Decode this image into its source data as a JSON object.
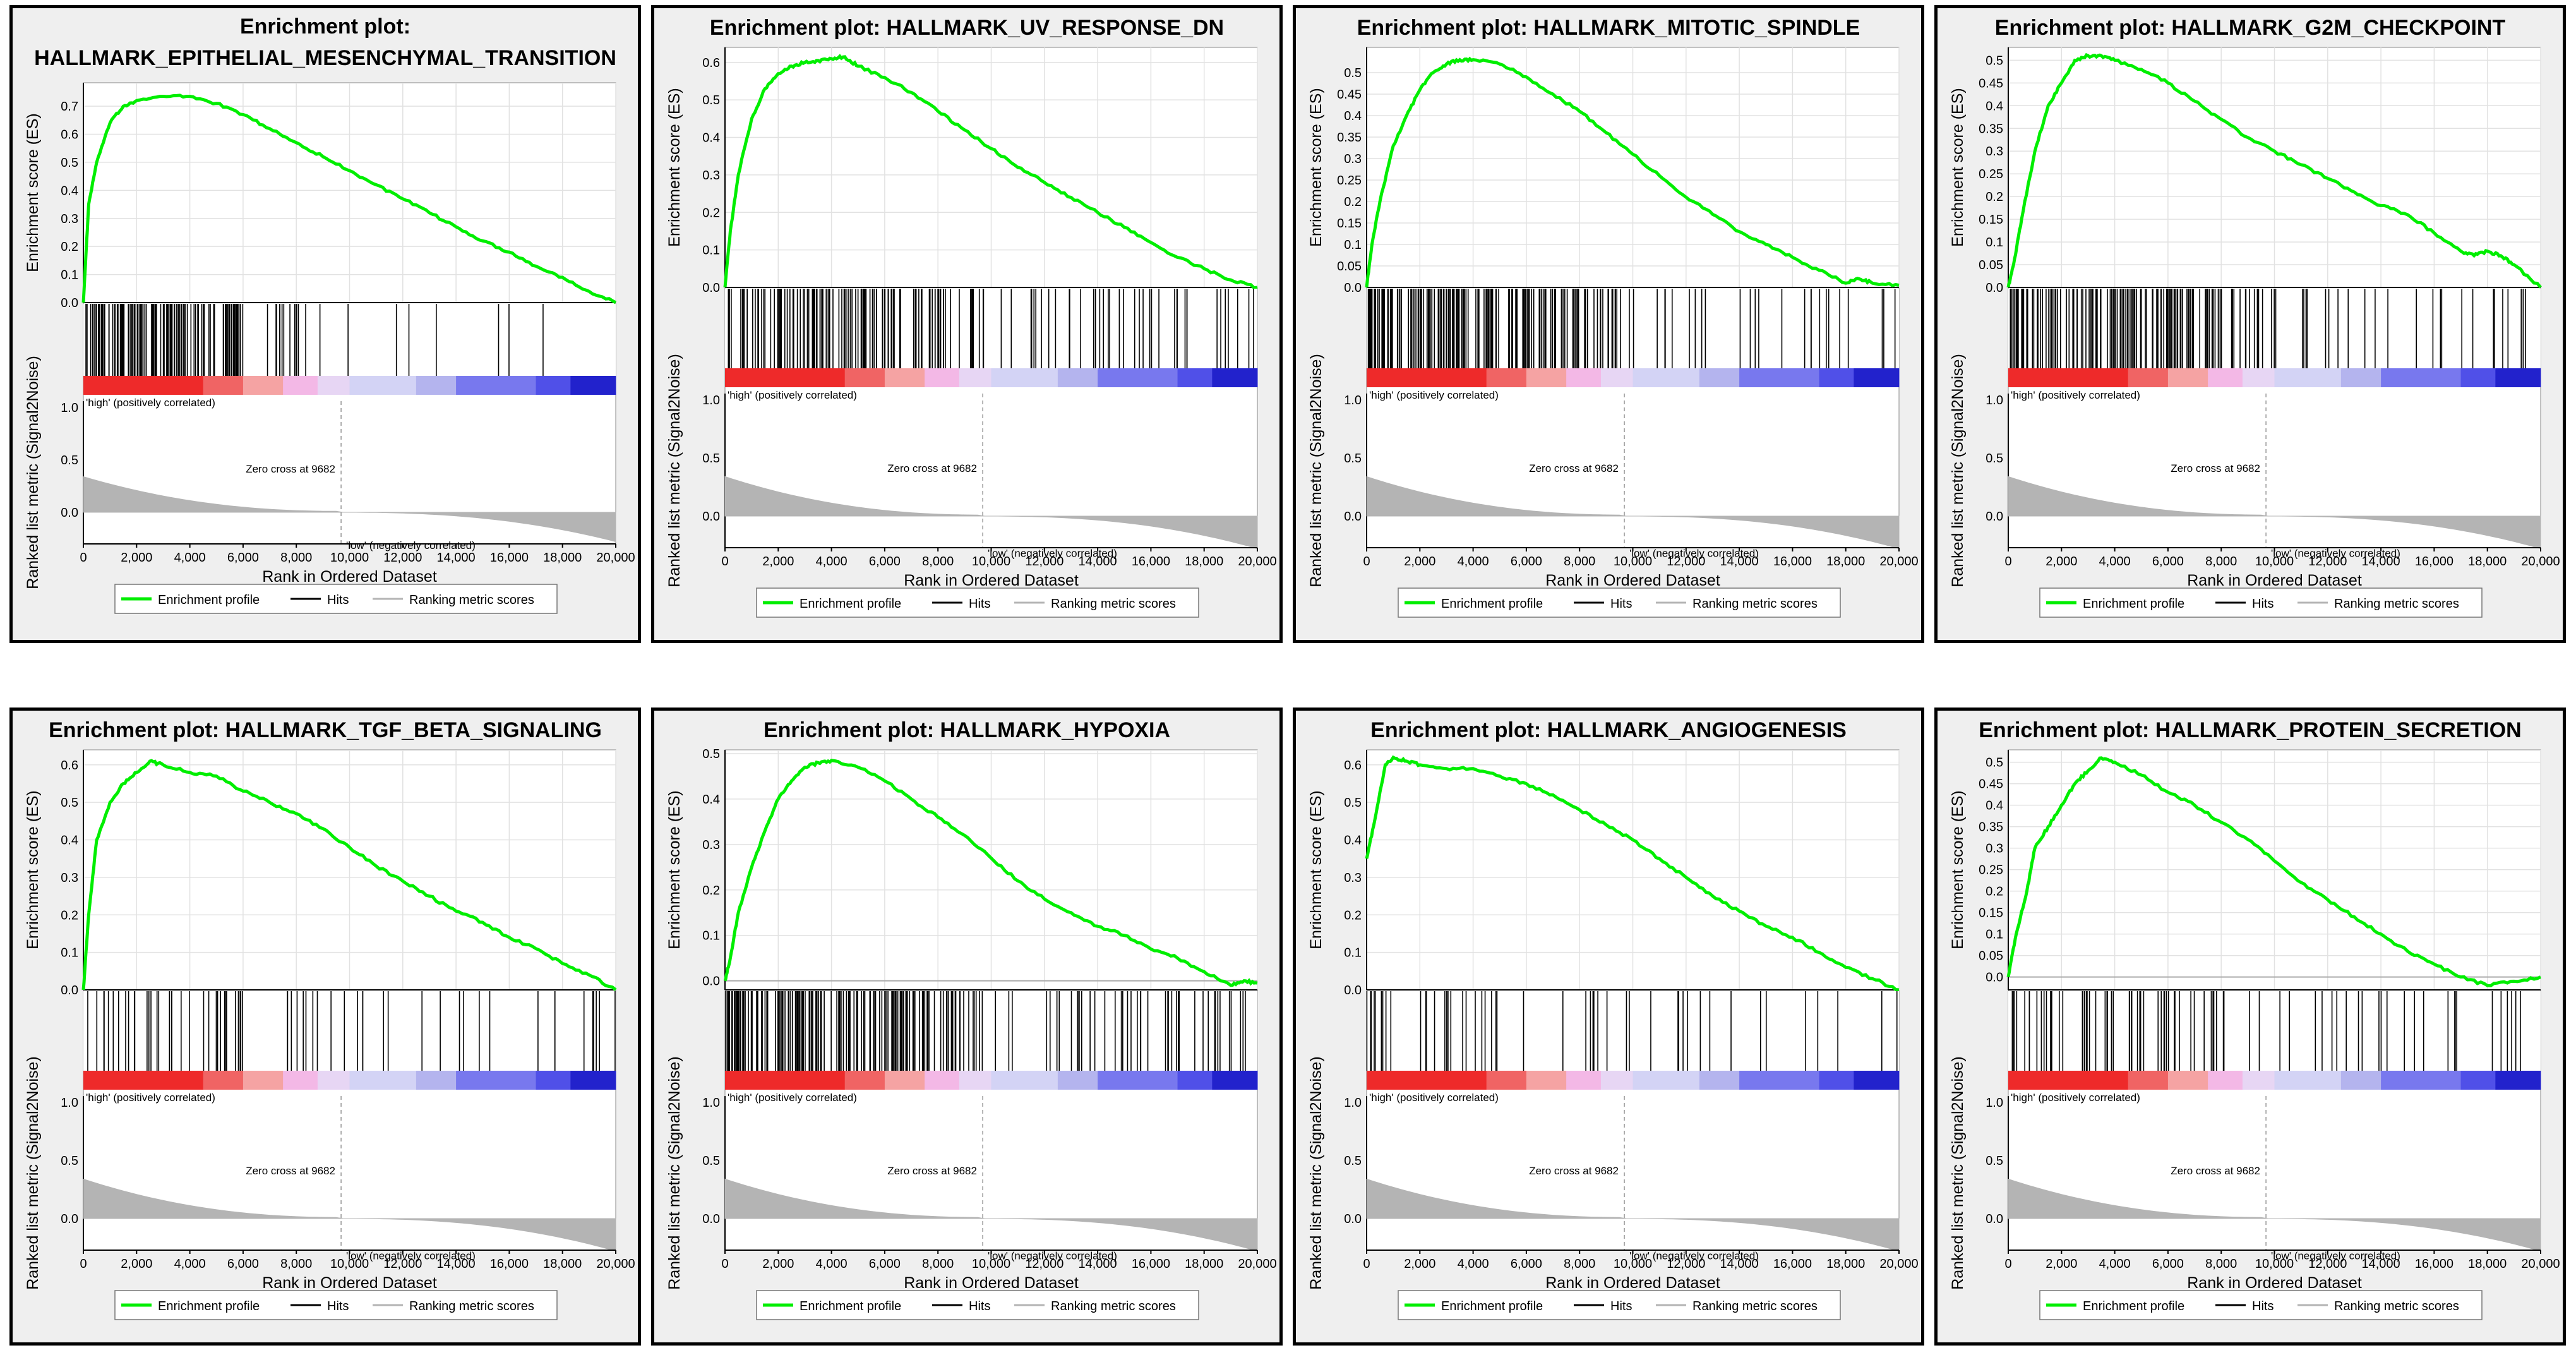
{
  "chart_data": [
    {
      "type": "line",
      "title_prefix": "Enrichment plot:",
      "gene_set": "HALLMARK_EPITHELIAL_MESENCHYMAL_TRANSITION",
      "title_two_lines": true,
      "ylabel": "Enrichment score (ES)",
      "ylim": [
        0,
        0.77
      ],
      "yticks": [
        0.0,
        0.1,
        0.2,
        0.3,
        0.4,
        0.5,
        0.6,
        0.7
      ],
      "es_curve": [
        [
          0,
          0
        ],
        [
          200,
          0.35
        ],
        [
          500,
          0.5
        ],
        [
          1000,
          0.64
        ],
        [
          1500,
          0.7
        ],
        [
          2000,
          0.72
        ],
        [
          3000,
          0.735
        ],
        [
          4000,
          0.735
        ],
        [
          5000,
          0.71
        ],
        [
          6000,
          0.67
        ],
        [
          7000,
          0.62
        ],
        [
          8000,
          0.57
        ],
        [
          9000,
          0.52
        ],
        [
          10000,
          0.47
        ],
        [
          11000,
          0.42
        ],
        [
          12000,
          0.37
        ],
        [
          13000,
          0.32
        ],
        [
          14000,
          0.27
        ],
        [
          15000,
          0.22
        ],
        [
          16000,
          0.18
        ],
        [
          17000,
          0.13
        ],
        [
          18000,
          0.09
        ],
        [
          19000,
          0.04
        ],
        [
          20000,
          0.0
        ]
      ],
      "hit_segments": [
        [
          0,
          6000,
          120
        ],
        [
          6000,
          8000,
          10
        ],
        [
          8000,
          10000,
          5
        ],
        [
          10000,
          20000,
          6
        ]
      ]
    },
    {
      "type": "line",
      "title_prefix": "Enrichment plot:",
      "gene_set": "HALLMARK_UV_RESPONSE_DN",
      "title_two_lines": false,
      "ylabel": "Enrichment score (ES)",
      "ylim": [
        0,
        0.63
      ],
      "yticks": [
        0.0,
        0.1,
        0.2,
        0.3,
        0.4,
        0.5,
        0.6
      ],
      "es_curve": [
        [
          0,
          0
        ],
        [
          200,
          0.15
        ],
        [
          500,
          0.3
        ],
        [
          1000,
          0.45
        ],
        [
          1500,
          0.53
        ],
        [
          2000,
          0.57
        ],
        [
          2500,
          0.59
        ],
        [
          3000,
          0.6
        ],
        [
          3500,
          0.605
        ],
        [
          4000,
          0.61
        ],
        [
          4500,
          0.615
        ],
        [
          5000,
          0.59
        ],
        [
          6000,
          0.56
        ],
        [
          7000,
          0.52
        ],
        [
          8000,
          0.47
        ],
        [
          9000,
          0.42
        ],
        [
          10000,
          0.37
        ],
        [
          11000,
          0.32
        ],
        [
          12000,
          0.28
        ],
        [
          13000,
          0.24
        ],
        [
          14000,
          0.2
        ],
        [
          15000,
          0.16
        ],
        [
          16000,
          0.12
        ],
        [
          17000,
          0.08
        ],
        [
          18000,
          0.05
        ],
        [
          19000,
          0.02
        ],
        [
          20000,
          0.0
        ]
      ],
      "hit_segments": [
        [
          0,
          7000,
          90
        ],
        [
          7000,
          10000,
          30
        ],
        [
          10000,
          20000,
          40
        ]
      ]
    },
    {
      "type": "line",
      "title_prefix": "Enrichment plot:",
      "gene_set": "HALLMARK_MITOTIC_SPINDLE",
      "title_two_lines": false,
      "ylabel": "Enrichment score (ES)",
      "ylim": [
        0,
        0.55
      ],
      "yticks": [
        0.0,
        0.05,
        0.1,
        0.15,
        0.2,
        0.25,
        0.3,
        0.35,
        0.4,
        0.45,
        0.5
      ],
      "es_curve": [
        [
          0,
          0
        ],
        [
          200,
          0.1
        ],
        [
          500,
          0.2
        ],
        [
          1000,
          0.33
        ],
        [
          1500,
          0.4
        ],
        [
          2000,
          0.46
        ],
        [
          2500,
          0.5
        ],
        [
          3000,
          0.52
        ],
        [
          3500,
          0.53
        ],
        [
          4000,
          0.53
        ],
        [
          5000,
          0.52
        ],
        [
          6000,
          0.49
        ],
        [
          7000,
          0.45
        ],
        [
          8000,
          0.41
        ],
        [
          9000,
          0.36
        ],
        [
          10000,
          0.31
        ],
        [
          11000,
          0.26
        ],
        [
          12000,
          0.21
        ],
        [
          13000,
          0.17
        ],
        [
          14000,
          0.13
        ],
        [
          15000,
          0.1
        ],
        [
          16000,
          0.07
        ],
        [
          17000,
          0.04
        ],
        [
          18000,
          0.01
        ],
        [
          18500,
          0.02
        ],
        [
          19000,
          0.01
        ],
        [
          20000,
          0.005
        ]
      ],
      "hit_segments": [
        [
          0,
          8000,
          140
        ],
        [
          8000,
          10000,
          20
        ],
        [
          10000,
          20000,
          25
        ]
      ]
    },
    {
      "type": "line",
      "title_prefix": "Enrichment plot:",
      "gene_set": "HALLMARK_G2M_CHECKPOINT",
      "title_two_lines": false,
      "ylabel": "Enrichment score (ES)",
      "ylim": [
        0,
        0.52
      ],
      "yticks": [
        0.0,
        0.05,
        0.1,
        0.15,
        0.2,
        0.25,
        0.3,
        0.35,
        0.4,
        0.45,
        0.5
      ],
      "es_curve": [
        [
          0,
          0
        ],
        [
          200,
          0.05
        ],
        [
          500,
          0.15
        ],
        [
          1000,
          0.3
        ],
        [
          1500,
          0.4
        ],
        [
          2000,
          0.45
        ],
        [
          2500,
          0.5
        ],
        [
          3000,
          0.51
        ],
        [
          3500,
          0.51
        ],
        [
          4000,
          0.5
        ],
        [
          5000,
          0.48
        ],
        [
          6000,
          0.45
        ],
        [
          7000,
          0.41
        ],
        [
          8000,
          0.37
        ],
        [
          9000,
          0.33
        ],
        [
          10000,
          0.3
        ],
        [
          11000,
          0.27
        ],
        [
          12000,
          0.24
        ],
        [
          13000,
          0.21
        ],
        [
          14000,
          0.18
        ],
        [
          15000,
          0.16
        ],
        [
          16000,
          0.12
        ],
        [
          17000,
          0.08
        ],
        [
          17500,
          0.07
        ],
        [
          18000,
          0.08
        ],
        [
          18500,
          0.07
        ],
        [
          19000,
          0.05
        ],
        [
          20000,
          0.0
        ]
      ],
      "hit_segments": [
        [
          0,
          8000,
          140
        ],
        [
          8000,
          10000,
          15
        ],
        [
          10000,
          20000,
          25
        ]
      ]
    },
    {
      "type": "line",
      "title_prefix": "Enrichment plot:",
      "gene_set": "HALLMARK_TGF_BETA_SIGNALING",
      "title_two_lines": false,
      "ylabel": "Enrichment score (ES)",
      "ylim": [
        0,
        0.63
      ],
      "yticks": [
        0.0,
        0.1,
        0.2,
        0.3,
        0.4,
        0.5,
        0.6
      ],
      "es_curve": [
        [
          0,
          0
        ],
        [
          200,
          0.2
        ],
        [
          500,
          0.4
        ],
        [
          1000,
          0.5
        ],
        [
          1500,
          0.55
        ],
        [
          2000,
          0.58
        ],
        [
          2500,
          0.61
        ],
        [
          3000,
          0.6
        ],
        [
          4000,
          0.58
        ],
        [
          5000,
          0.57
        ],
        [
          6000,
          0.53
        ],
        [
          7000,
          0.5
        ],
        [
          8000,
          0.47
        ],
        [
          9000,
          0.43
        ],
        [
          10000,
          0.38
        ],
        [
          11000,
          0.33
        ],
        [
          12000,
          0.29
        ],
        [
          13000,
          0.25
        ],
        [
          14000,
          0.21
        ],
        [
          15000,
          0.18
        ],
        [
          16000,
          0.14
        ],
        [
          17000,
          0.11
        ],
        [
          18000,
          0.07
        ],
        [
          19000,
          0.04
        ],
        [
          20000,
          0.0
        ]
      ],
      "hit_segments": [
        [
          0,
          6000,
          35
        ],
        [
          6000,
          10000,
          10
        ],
        [
          10000,
          20000,
          20
        ]
      ]
    },
    {
      "type": "line",
      "title_prefix": "Enrichment plot:",
      "gene_set": "HALLMARK_HYPOXIA",
      "title_two_lines": false,
      "ylabel": "Enrichment score (ES)",
      "ylim": [
        -0.02,
        0.5
      ],
      "yticks": [
        0.0,
        0.1,
        0.2,
        0.3,
        0.4,
        0.5
      ],
      "es_curve": [
        [
          0,
          0
        ],
        [
          200,
          0.05
        ],
        [
          500,
          0.15
        ],
        [
          1000,
          0.25
        ],
        [
          1500,
          0.33
        ],
        [
          2000,
          0.4
        ],
        [
          2500,
          0.44
        ],
        [
          3000,
          0.47
        ],
        [
          3500,
          0.48
        ],
        [
          4000,
          0.485
        ],
        [
          5000,
          0.47
        ],
        [
          6000,
          0.44
        ],
        [
          7000,
          0.4
        ],
        [
          8000,
          0.36
        ],
        [
          9000,
          0.32
        ],
        [
          10000,
          0.27
        ],
        [
          11000,
          0.22
        ],
        [
          12000,
          0.18
        ],
        [
          13000,
          0.15
        ],
        [
          14000,
          0.12
        ],
        [
          15000,
          0.1
        ],
        [
          16000,
          0.07
        ],
        [
          17000,
          0.05
        ],
        [
          18000,
          0.02
        ],
        [
          19000,
          -0.01
        ],
        [
          19500,
          0.0
        ],
        [
          20000,
          -0.005
        ]
      ],
      "hit_segments": [
        [
          0,
          9000,
          150
        ],
        [
          9000,
          14000,
          20
        ],
        [
          14000,
          20000,
          30
        ]
      ]
    },
    {
      "type": "line",
      "title_prefix": "Enrichment plot:",
      "gene_set": "HALLMARK_ANGIOGENESIS",
      "title_two_lines": false,
      "ylabel": "Enrichment score (ES)",
      "ylim": [
        0,
        0.63
      ],
      "yticks": [
        0.0,
        0.1,
        0.2,
        0.3,
        0.4,
        0.5,
        0.6
      ],
      "es_curve": [
        [
          0,
          0.35
        ],
        [
          300,
          0.45
        ],
        [
          700,
          0.6
        ],
        [
          1000,
          0.62
        ],
        [
          1500,
          0.61
        ],
        [
          2000,
          0.6
        ],
        [
          3000,
          0.59
        ],
        [
          4000,
          0.59
        ],
        [
          5000,
          0.57
        ],
        [
          6000,
          0.55
        ],
        [
          7000,
          0.52
        ],
        [
          8000,
          0.48
        ],
        [
          9000,
          0.44
        ],
        [
          10000,
          0.4
        ],
        [
          11000,
          0.35
        ],
        [
          12000,
          0.3
        ],
        [
          13000,
          0.25
        ],
        [
          14000,
          0.21
        ],
        [
          15000,
          0.17
        ],
        [
          16000,
          0.14
        ],
        [
          17000,
          0.1
        ],
        [
          18000,
          0.06
        ],
        [
          19000,
          0.03
        ],
        [
          20000,
          0.0
        ]
      ],
      "hit_segments": [
        [
          0,
          5000,
          25
        ],
        [
          5000,
          10000,
          10
        ],
        [
          10000,
          20000,
          15
        ]
      ]
    },
    {
      "type": "line",
      "title_prefix": "Enrichment plot:",
      "gene_set": "HALLMARK_PROTEIN_SECRETION",
      "title_two_lines": false,
      "ylabel": "Enrichment score (ES)",
      "ylim": [
        -0.03,
        0.52
      ],
      "yticks": [
        0.0,
        0.05,
        0.1,
        0.15,
        0.2,
        0.25,
        0.3,
        0.35,
        0.4,
        0.45,
        0.5
      ],
      "es_curve": [
        [
          0,
          0
        ],
        [
          300,
          0.1
        ],
        [
          700,
          0.2
        ],
        [
          1000,
          0.3
        ],
        [
          1500,
          0.35
        ],
        [
          2000,
          0.4
        ],
        [
          2500,
          0.45
        ],
        [
          3000,
          0.48
        ],
        [
          3500,
          0.51
        ],
        [
          4000,
          0.5
        ],
        [
          5000,
          0.47
        ],
        [
          6000,
          0.43
        ],
        [
          7000,
          0.4
        ],
        [
          8000,
          0.36
        ],
        [
          9000,
          0.32
        ],
        [
          10000,
          0.27
        ],
        [
          11000,
          0.22
        ],
        [
          12000,
          0.18
        ],
        [
          13000,
          0.14
        ],
        [
          14000,
          0.1
        ],
        [
          15000,
          0.06
        ],
        [
          16000,
          0.03
        ],
        [
          17000,
          0.0
        ],
        [
          18000,
          -0.02
        ],
        [
          19000,
          -0.01
        ],
        [
          20000,
          0.0
        ]
      ],
      "hit_segments": [
        [
          0,
          7000,
          50
        ],
        [
          7000,
          10000,
          10
        ],
        [
          10000,
          20000,
          25
        ]
      ]
    }
  ],
  "shared": {
    "xlabel": "Rank in Ordered Dataset",
    "xticks": [
      0,
      2000,
      4000,
      6000,
      8000,
      10000,
      12000,
      14000,
      16000,
      18000,
      20000
    ],
    "xtick_labels": [
      "0",
      "2,000",
      "4,000",
      "6,000",
      "8,000",
      "10,000",
      "12,000",
      "14,000",
      "16,000",
      "18,000",
      "20,000"
    ],
    "metric_ylabel": "Ranked list metric (Signal2Noise)",
    "metric_yticks": [
      0.0,
      0.5,
      1.0
    ],
    "metric_ytick_labels": [
      "0.0",
      "0.5",
      "1.0"
    ],
    "zero_cross_text": "Zero cross at 9682",
    "zero_cross_rank": 9682,
    "high_label": "'high' (positively correlated)",
    "low_label": "'low' (negatively correlated)",
    "legend": [
      "Enrichment profile",
      "Hits",
      "Ranking metric scores"
    ],
    "colors": {
      "es_line": "#00ee00",
      "hits": "#000000",
      "metric": "#b4b4b4",
      "high_text": "#dd0000",
      "low_text": "#0000cc",
      "heat": [
        "#ee3333",
        "#f07676",
        "#f7b8b8",
        "#f0bfe8",
        "#e0d8f4",
        "#c8c8f2",
        "#9a9ae8",
        "#6a6af0",
        "#2a2ae0"
      ]
    }
  }
}
